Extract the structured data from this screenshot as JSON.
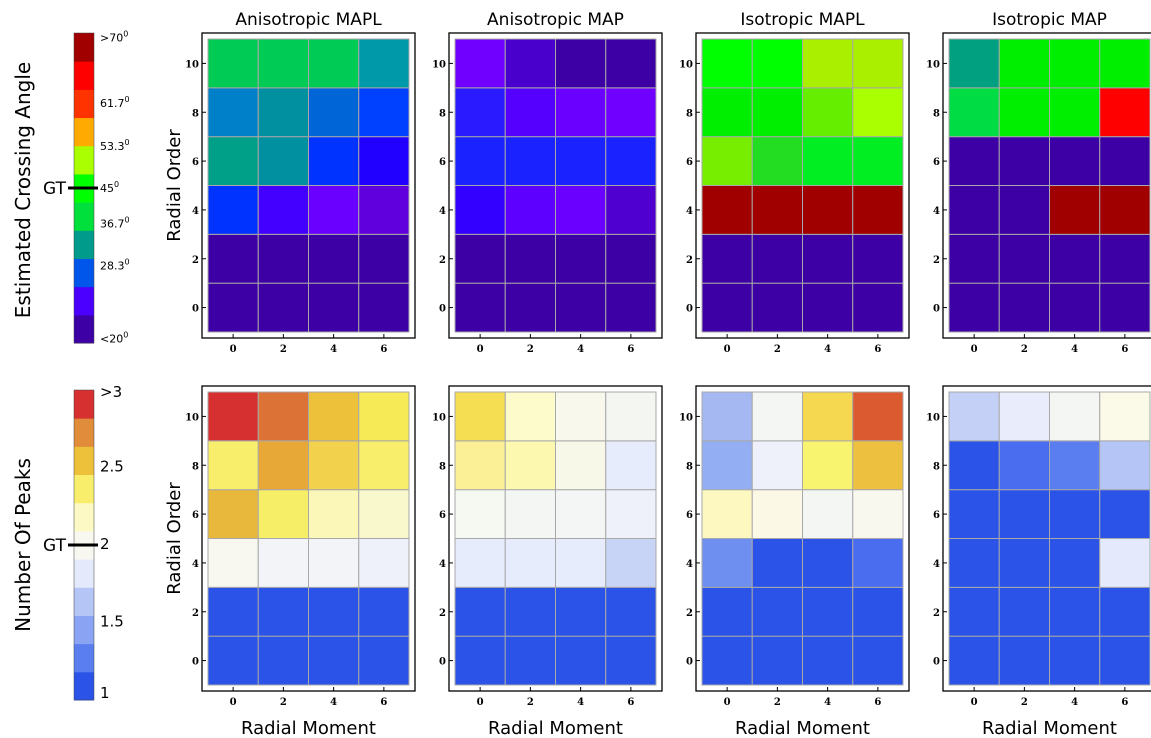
{
  "row_labels": {
    "top": "Estimated Crossing Angle",
    "bottom": "Number Of Peaks"
  },
  "colorbars": {
    "angle": {
      "ticks": [
        {
          "label": "<20",
          "sup": "0"
        },
        {
          "label": "28.3",
          "sup": "0"
        },
        {
          "label": "36.7",
          "sup": "0"
        },
        {
          "label": "45",
          "sup": "0"
        },
        {
          "label": "53.3",
          "sup": "0"
        },
        {
          "label": "61.7",
          "sup": "0"
        },
        {
          "label": ">70",
          "sup": "0"
        }
      ],
      "gt_label": "GT",
      "colors": [
        "#3d00a5",
        "#4b00ff",
        "#0055ea",
        "#009b8a",
        "#00e03c",
        "#00ff00",
        "#aaff00",
        "#ffaa00",
        "#ff3300",
        "#ff0000",
        "#a00000"
      ]
    },
    "peaks": {
      "ticks": [
        "1",
        "1.5",
        "2",
        "2.5",
        ">3"
      ],
      "gt_label": "GT",
      "colors": [
        "#2b53e8",
        "#5a7ef0",
        "#8aa3f2",
        "#b5c5f5",
        "#e4e9fb",
        "#f8f8f0",
        "#fdf9c4",
        "#f8ee6c",
        "#eec13a",
        "#e08c3a",
        "#d63030"
      ]
    }
  },
  "chart_data": [
    {
      "type": "heatmap",
      "title": "Anisotropic MAPL",
      "ylabel": "Radial Order",
      "x": [
        0,
        2,
        4,
        6
      ],
      "y": [
        0,
        2,
        4,
        6,
        8,
        10
      ],
      "metric": "crossing_angle",
      "colors": [
        [
          "#3d00a5",
          "#3d00a5",
          "#3d00a5",
          "#3d00a5"
        ],
        [
          "#3d00a5",
          "#3d00a5",
          "#3d00a5",
          "#3d00a5"
        ],
        [
          "#0033ff",
          "#4400ff",
          "#6a00ff",
          "#5f00dd"
        ],
        [
          "#009f88",
          "#0090a0",
          "#0033ff",
          "#2200ff"
        ],
        [
          "#0080c8",
          "#0090a0",
          "#0066d8",
          "#0040ff"
        ],
        [
          "#00cc55",
          "#00cc55",
          "#00cc55",
          "#0099aa"
        ]
      ]
    },
    {
      "type": "heatmap",
      "title": "Anisotropic MAP",
      "x": [
        0,
        2,
        4,
        6
      ],
      "y": [
        0,
        2,
        4,
        6,
        8,
        10
      ],
      "metric": "crossing_angle",
      "colors": [
        [
          "#3d00a5",
          "#3d00a5",
          "#3d00a5",
          "#3d00a5"
        ],
        [
          "#3d00a5",
          "#3d00a5",
          "#3d00a5",
          "#3d00a5"
        ],
        [
          "#3300ff",
          "#5e00ff",
          "#6a00ff",
          "#4f00d0"
        ],
        [
          "#1a22ff",
          "#1a22ff",
          "#1a22ff",
          "#1a22ff"
        ],
        [
          "#2a1aff",
          "#5500ff",
          "#6a00ff",
          "#7000ff"
        ],
        [
          "#7000ff",
          "#4a00cc",
          "#3d00a5",
          "#3d00a5"
        ]
      ]
    },
    {
      "type": "heatmap",
      "title": "Isotropic MAPL",
      "x": [
        0,
        2,
        4,
        6
      ],
      "y": [
        0,
        2,
        4,
        6,
        8,
        10
      ],
      "metric": "crossing_angle",
      "colors": [
        [
          "#3d00a5",
          "#3d00a5",
          "#3d00a5",
          "#3d00a5"
        ],
        [
          "#3d00a5",
          "#3d00a5",
          "#3d00a5",
          "#3d00a5"
        ],
        [
          "#a00000",
          "#a00000",
          "#a00000",
          "#a00000"
        ],
        [
          "#77ee00",
          "#22dd22",
          "#00ee22",
          "#00ee22"
        ],
        [
          "#00ee00",
          "#00ee00",
          "#66ee00",
          "#aaff00"
        ],
        [
          "#00ff00",
          "#00ff00",
          "#aaee00",
          "#aaee00"
        ]
      ]
    },
    {
      "type": "heatmap",
      "title": "Isotropic MAP",
      "x": [
        0,
        2,
        4,
        6
      ],
      "y": [
        0,
        2,
        4,
        6,
        8,
        10
      ],
      "metric": "crossing_angle",
      "colors": [
        [
          "#3d00a5",
          "#3d00a5",
          "#3d00a5",
          "#3d00a5"
        ],
        [
          "#3d00a5",
          "#3d00a5",
          "#3d00a5",
          "#3d00a5"
        ],
        [
          "#3d00a5",
          "#3d00a5",
          "#a00000",
          "#a00000"
        ],
        [
          "#3d00a5",
          "#3d00a5",
          "#3d00a5",
          "#3d00a5"
        ],
        [
          "#00dd44",
          "#00ee00",
          "#00ee00",
          "#ff0000"
        ],
        [
          "#00a080",
          "#00ee00",
          "#00ee00",
          "#00ee00"
        ]
      ]
    },
    {
      "type": "heatmap",
      "xlabel": "Radial Moment",
      "ylabel": "Radial Order",
      "x": [
        0,
        2,
        4,
        6
      ],
      "y": [
        0,
        2,
        4,
        6,
        8,
        10
      ],
      "metric": "number_of_peaks",
      "colors": [
        [
          "#2b53e8",
          "#2b53e8",
          "#2b53e8",
          "#2b53e8"
        ],
        [
          "#2b53e8",
          "#2b53e8",
          "#2b53e8",
          "#2b53e8"
        ],
        [
          "#f8f8f0",
          "#f2f4f8",
          "#f2f4f8",
          "#eef1fa"
        ],
        [
          "#e8b83c",
          "#f6ee66",
          "#fbf7b8",
          "#f9f7cc"
        ],
        [
          "#f8ee6c",
          "#e8a838",
          "#f2d24c",
          "#f8ee6c"
        ],
        [
          "#d63030",
          "#dc7236",
          "#eec13a",
          "#f6ea56"
        ]
      ]
    },
    {
      "type": "heatmap",
      "xlabel": "Radial Moment",
      "x": [
        0,
        2,
        4,
        6
      ],
      "y": [
        0,
        2,
        4,
        6,
        8,
        10
      ],
      "metric": "number_of_peaks",
      "colors": [
        [
          "#2b53e8",
          "#2b53e8",
          "#2b53e8",
          "#2b53e8"
        ],
        [
          "#2b53e8",
          "#2b53e8",
          "#2b53e8",
          "#2b53e8"
        ],
        [
          "#e6ecfb",
          "#e6ecfb",
          "#e6ecfb",
          "#c8d4f6"
        ],
        [
          "#f6f8f2",
          "#f4f6f4",
          "#f4f6f6",
          "#eef1fa"
        ],
        [
          "#fbf096",
          "#fcf8b0",
          "#f8f8e8",
          "#e6ecfb"
        ],
        [
          "#f6de52",
          "#fdfbcc",
          "#f8f8ec",
          "#f4f6f2"
        ]
      ]
    },
    {
      "type": "heatmap",
      "xlabel": "Radial Moment",
      "x": [
        0,
        2,
        4,
        6
      ],
      "y": [
        0,
        2,
        4,
        6,
        8,
        10
      ],
      "metric": "number_of_peaks",
      "colors": [
        [
          "#2b53e8",
          "#2b53e8",
          "#2b53e8",
          "#2b53e8"
        ],
        [
          "#2b53e8",
          "#2b53e8",
          "#2b53e8",
          "#2b53e8"
        ],
        [
          "#6e8ef0",
          "#2b53e8",
          "#2b53e8",
          "#4a6cee"
        ],
        [
          "#fcf8c0",
          "#fbf9e6",
          "#f4f6f4",
          "#f8f8ee"
        ],
        [
          "#93aef2",
          "#eef1fa",
          "#f8f470",
          "#eec040"
        ],
        [
          "#a6b8f2",
          "#f4f6f4",
          "#f6d850",
          "#dc5a30"
        ]
      ]
    },
    {
      "type": "heatmap",
      "xlabel": "Radial Moment",
      "x": [
        0,
        2,
        4,
        6
      ],
      "y": [
        0,
        2,
        4,
        6,
        8,
        10
      ],
      "metric": "number_of_peaks",
      "colors": [
        [
          "#2b53e8",
          "#2b53e8",
          "#2b53e8",
          "#2b53e8"
        ],
        [
          "#2b53e8",
          "#2b53e8",
          "#2b53e8",
          "#2b53e8"
        ],
        [
          "#2b53e8",
          "#2b53e8",
          "#2b53e8",
          "#e4e9fb"
        ],
        [
          "#2b53e8",
          "#2b53e8",
          "#2b53e8",
          "#2b53e8"
        ],
        [
          "#2b53e8",
          "#4a6cee",
          "#5a7ef0",
          "#b5c5f5"
        ],
        [
          "#c4d0f6",
          "#e8ecfb",
          "#f4f6f4",
          "#fbfae8"
        ]
      ]
    }
  ]
}
